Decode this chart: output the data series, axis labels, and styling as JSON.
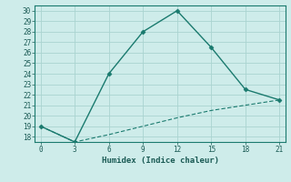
{
  "title": "",
  "xlabel": "Humidex (Indice chaleur)",
  "background_color": "#ceecea",
  "grid_color": "#aad4d0",
  "line_color": "#1a7a6e",
  "x_line1": [
    0,
    3,
    6,
    9,
    12,
    15,
    18,
    21
  ],
  "y_line1": [
    19,
    17.5,
    24,
    28,
    30,
    26.5,
    22.5,
    21.5
  ],
  "x_line2": [
    0,
    3,
    6,
    9,
    12,
    15,
    18,
    21
  ],
  "y_line2": [
    19,
    17.5,
    18.2,
    19.0,
    19.8,
    20.5,
    21.0,
    21.5
  ],
  "xlim": [
    -0.5,
    21.5
  ],
  "ylim": [
    17.5,
    30.5
  ],
  "xticks": [
    0,
    3,
    6,
    9,
    12,
    15,
    18,
    21
  ],
  "yticks": [
    18,
    19,
    20,
    21,
    22,
    23,
    24,
    25,
    26,
    27,
    28,
    29,
    30
  ],
  "tick_color": "#1a5a54",
  "spine_color": "#1a7a6e",
  "label_fontsize": 6.5,
  "tick_fontsize": 5.5
}
